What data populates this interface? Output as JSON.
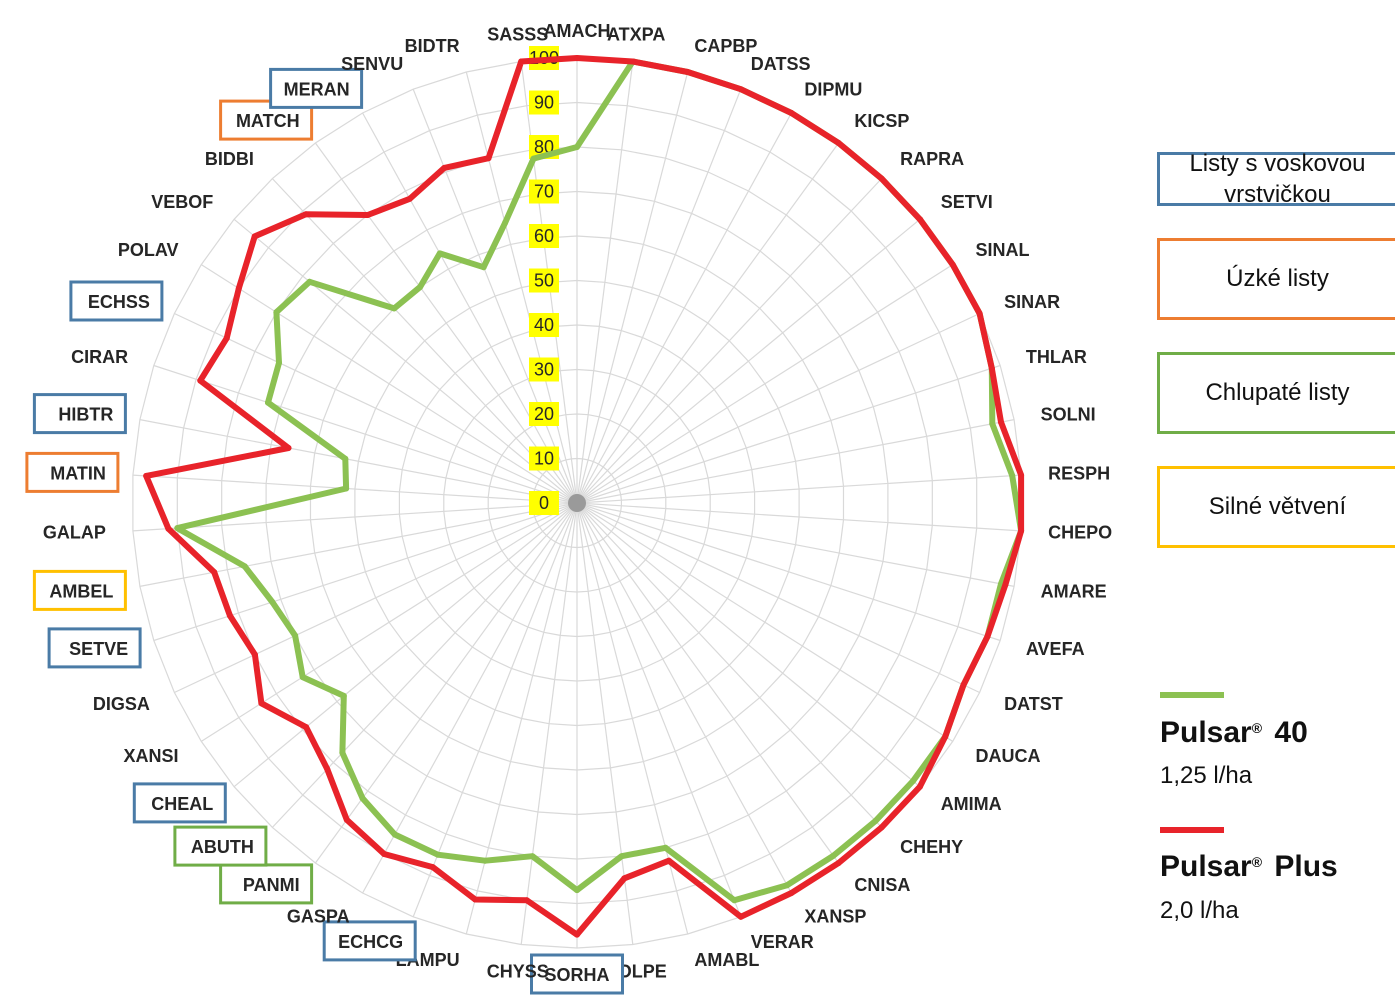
{
  "chart_data": {
    "type": "radar",
    "scale_labels": [
      "0",
      "10",
      "20",
      "30",
      "40",
      "50",
      "60",
      "70",
      "80",
      "90",
      "100"
    ],
    "rmax": 100,
    "categories": [
      "AMACH",
      "ATXPA",
      "CAPBP",
      "DATSS",
      "DIPMU",
      "KICSP",
      "RAPRA",
      "SETVI",
      "SINAL",
      "SINAR",
      "THLAR",
      "SOLNI",
      "RESPH",
      "CHEPO",
      "AMARE",
      "AVEFA",
      "DATST",
      "DAUCA",
      "AMIMA",
      "CHEHY",
      "CNISA",
      "XANSP",
      "VERAR",
      "AMABL",
      "POLPE",
      "SORHA",
      "CHYSS",
      "LAMPU",
      "ECHCG",
      "GASPA",
      "PANMI",
      "ABUTH",
      "CHEAL",
      "XANSI",
      "DIGSA",
      "SETVE",
      "AMBEL",
      "GALAP",
      "MATIN",
      "HIBTR",
      "CIRAR",
      "ECHSS",
      "POLAV",
      "VEBOF",
      "BIDBI",
      "MATCH",
      "MERAN",
      "SENVU",
      "BIDTR",
      "SASSS"
    ],
    "category_groups": {
      "AMACH": "none",
      "ATXPA": "none",
      "CAPBP": "none",
      "DATSS": "none",
      "DIPMU": "none",
      "KICSP": "none",
      "RAPRA": "none",
      "SETVI": "none",
      "SINAL": "none",
      "SINAR": "none",
      "THLAR": "none",
      "SOLNI": "none",
      "RESPH": "none",
      "CHEPO": "none",
      "AMARE": "none",
      "AVEFA": "none",
      "DATST": "none",
      "DAUCA": "none",
      "AMIMA": "none",
      "CHEHY": "none",
      "CNISA": "none",
      "XANSP": "none",
      "VERAR": "none",
      "AMABL": "none",
      "POLPE": "none",
      "SORHA": "wax",
      "CHYSS": "none",
      "LAMPU": "none",
      "ECHCG": "wax",
      "GASPA": "none",
      "PANMI": "hairy",
      "ABUTH": "hairy",
      "CHEAL": "wax",
      "XANSI": "none",
      "DIGSA": "none",
      "SETVE": "wax",
      "AMBEL": "branching",
      "GALAP": "none",
      "MATIN": "narrow",
      "HIBTR": "wax",
      "CIRAR": "none",
      "ECHSS": "wax",
      "POLAV": "none",
      "VEBOF": "none",
      "BIDBI": "none",
      "MATCH": "narrow",
      "MERAN": "wax",
      "SENVU": "none",
      "BIDTR": "none",
      "SASSS": "none"
    },
    "series": [
      {
        "name": "Pulsar® 40",
        "color": "#8cc152",
        "values": [
          80,
          100,
          100,
          100,
          100,
          100,
          100,
          100,
          100,
          100,
          98,
          95,
          98,
          100,
          97,
          97,
          96,
          98,
          98,
          98,
          98,
          98,
          96,
          80,
          80,
          87,
          80,
          83,
          85,
          85,
          82,
          77,
          68,
          73,
          70,
          72,
          76,
          90,
          52,
          53,
          73,
          74,
          80,
          78,
          60,
          60,
          64,
          57,
          65,
          78
        ]
      },
      {
        "name": "Pulsar® Plus",
        "color": "#e8232a",
        "values": [
          100,
          100,
          100,
          100,
          100,
          100,
          100,
          100,
          100,
          100,
          98,
          97,
          100,
          100,
          98,
          97,
          96,
          98,
          100,
          100,
          100,
          100,
          100,
          83,
          85,
          97,
          90,
          92,
          88,
          90,
          88,
          82,
          79,
          84,
          80,
          82,
          83,
          92,
          97,
          66,
          89,
          87,
          90,
          94,
          89,
          80,
          78,
          81,
          80,
          100
        ]
      }
    ]
  },
  "legend": {
    "groups": [
      {
        "id": "wax",
        "label": "Listy s voskovou vrstvičkou",
        "color": "#4a7ba6"
      },
      {
        "id": "narrow",
        "label": "Úzké listy",
        "color": "#ed7d31"
      },
      {
        "id": "hairy",
        "label": "Chlupaté listy",
        "color": "#70ad47"
      },
      {
        "id": "branching",
        "label": "Silné větvení",
        "color": "#ffc000"
      }
    ],
    "series": [
      {
        "brand": "Pulsar",
        "mark": "®",
        "suffix": " 40",
        "dose": "1,25 l/ha",
        "color": "#8cc152"
      },
      {
        "brand": "Pulsar",
        "mark": "®",
        "suffix": " Plus",
        "dose": "2,0 l/ha",
        "color": "#e8232a"
      }
    ]
  }
}
